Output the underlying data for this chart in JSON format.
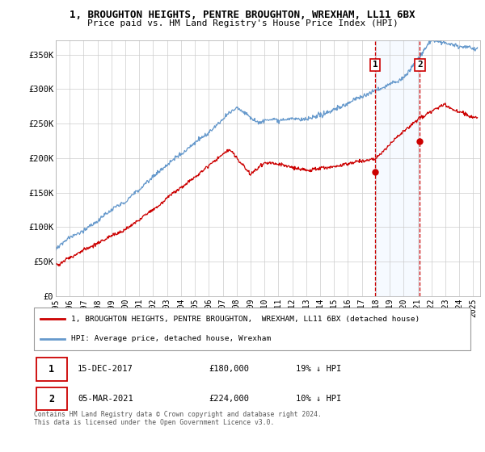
{
  "title": "1, BROUGHTON HEIGHTS, PENTRE BROUGHTON, WREXHAM, LL11 6BX",
  "subtitle": "Price paid vs. HM Land Registry's House Price Index (HPI)",
  "ylabel_ticks": [
    "£0",
    "£50K",
    "£100K",
    "£150K",
    "£200K",
    "£250K",
    "£300K",
    "£350K"
  ],
  "ytick_values": [
    0,
    50000,
    100000,
    150000,
    200000,
    250000,
    300000,
    350000
  ],
  "ylim": [
    0,
    370000
  ],
  "xlim_start": 1995.0,
  "xlim_end": 2025.5,
  "transaction1": {
    "date_num": 2017.96,
    "price": 180000,
    "label": "1"
  },
  "transaction2": {
    "date_num": 2021.17,
    "price": 224000,
    "label": "2"
  },
  "legend_line1": "1, BROUGHTON HEIGHTS, PENTRE BROUGHTON,  WREXHAM, LL11 6BX (detached house)",
  "legend_line2": "HPI: Average price, detached house, Wrexham",
  "table_row1": [
    "1",
    "15-DEC-2017",
    "£180,000",
    "19% ↓ HPI"
  ],
  "table_row2": [
    "2",
    "05-MAR-2021",
    "£224,000",
    "10% ↓ HPI"
  ],
  "footnote1": "Contains HM Land Registry data © Crown copyright and database right 2024.",
  "footnote2": "This data is licensed under the Open Government Licence v3.0.",
  "line_color_red": "#cc0000",
  "line_color_blue": "#6699cc",
  "marker_color_red": "#cc0000",
  "vline_color": "#cc0000",
  "highlight_color": "#ddeeff",
  "background_color": "#ffffff",
  "grid_color": "#cccccc"
}
